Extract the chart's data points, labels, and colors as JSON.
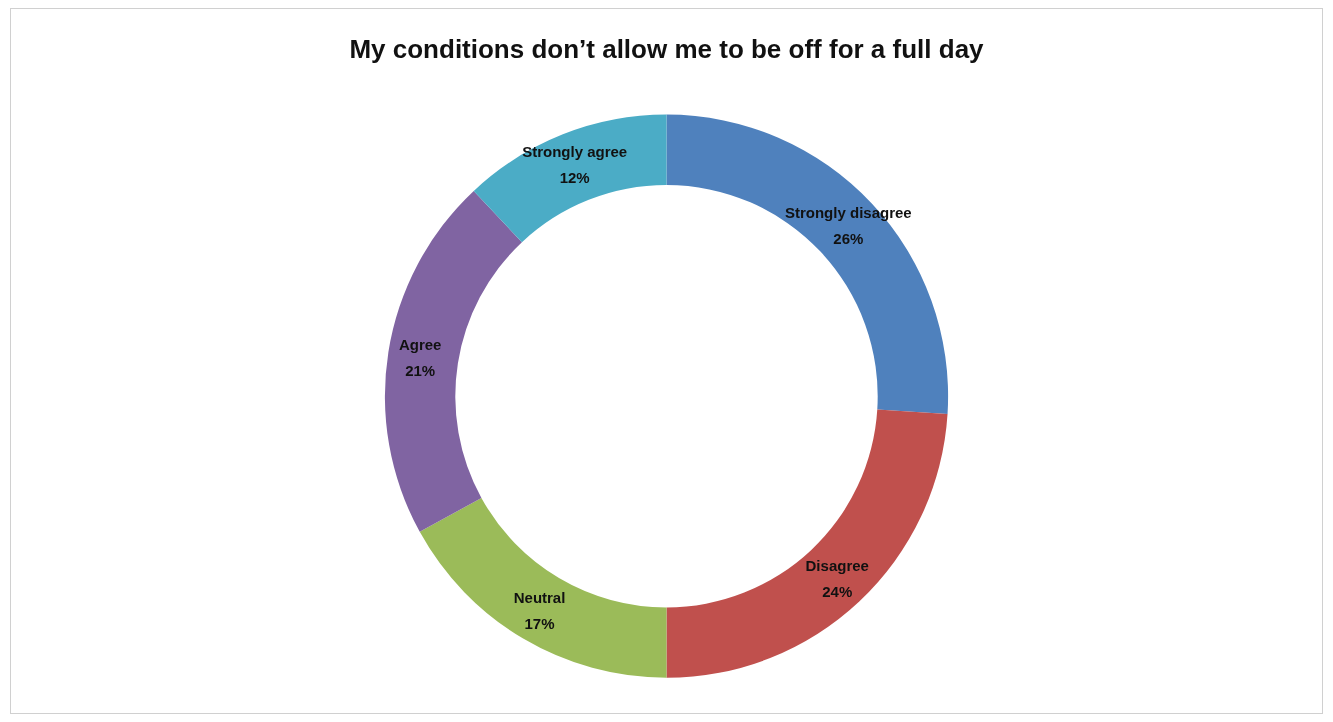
{
  "chart_data": {
    "type": "donut",
    "title": "My conditions don’t allow me to be off for a full day",
    "categories": [
      "Strongly disagree",
      "Disagree",
      "Neutral",
      "Agree",
      "Strongly agree"
    ],
    "values": [
      26,
      24,
      17,
      21,
      12
    ],
    "colors": [
      "#4f81bd",
      "#c0504d",
      "#9bbb59",
      "#8064a2",
      "#4bacc6"
    ],
    "value_labels": [
      "26%",
      "24%",
      "17%",
      "21%",
      "12%"
    ],
    "legend": false
  }
}
